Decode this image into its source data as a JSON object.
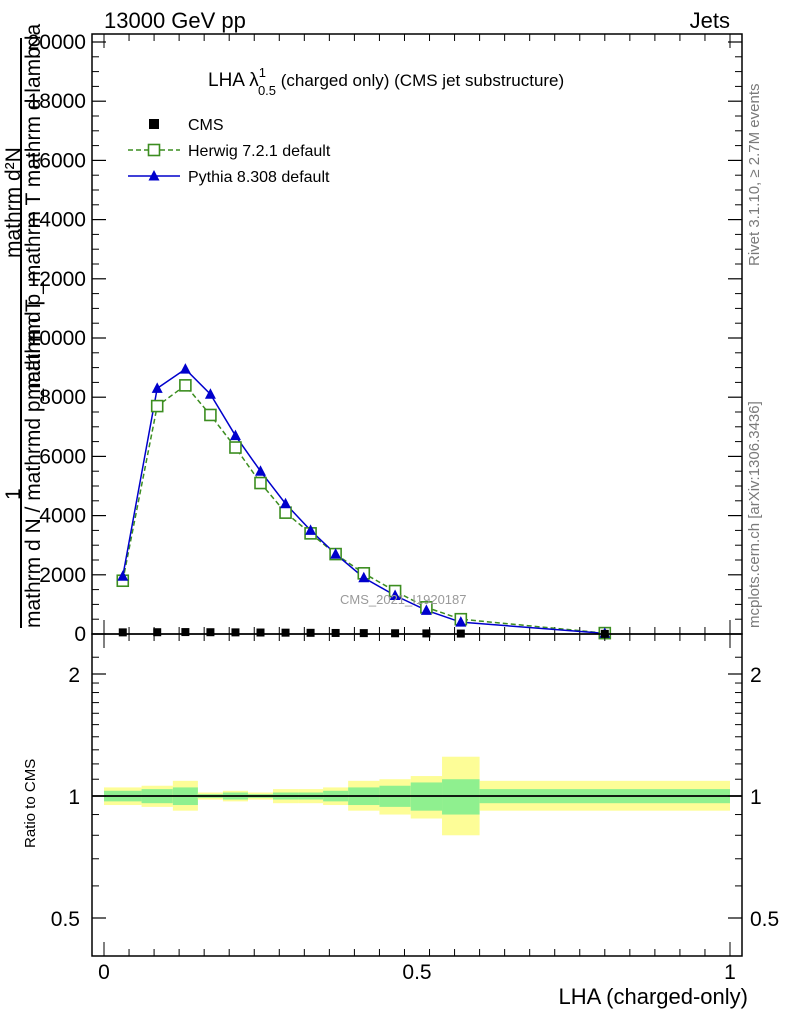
{
  "header": {
    "left": "13000 GeV pp",
    "right": "Jets"
  },
  "side_labels": {
    "rivet": "Rivet 3.1.10, ≥ 2.7M events",
    "mcplots": "mcplots.cern.ch [arXiv:1306.3436]"
  },
  "main_plot": {
    "title_main": "LHA λ",
    "title_sup": "1",
    "title_sub": "0.5",
    "title_rest": " (charged only) (CMS jet substructure)",
    "watermark": "CMS_2021_I1920187",
    "ylabel_numerator_1": "mathrm d²N",
    "ylabel_denominator_1": "mathrm d p_mathrm T mathrm d lambda",
    "ylabel_one": "1",
    "ylabel_denominator_2": "mathrm d N / mathrmd p_mathrm T",
    "ylabel_sub_T": "T"
  },
  "ratio_plot": {
    "ylabel": "Ratio to CMS"
  },
  "xlabel": "LHA (charged-only)",
  "colors": {
    "data": "#000000",
    "herwig": "#3c8d20",
    "pythia": "#0000cc",
    "band_inner": "#8ff08f",
    "band_outer": "#fdfd97"
  },
  "chart_data": [
    {
      "type": "line",
      "title": "LHA λ^1_0.5 (charged only) (CMS jet substructure)",
      "xlabel": "LHA (charged-only)",
      "ylabel": "1/(mathrm d N / mathrmd p_mathrm T) mathrm d²N/(mathrm d p_mathrm T mathrm d lambda)",
      "xlim": [
        0,
        1
      ],
      "ylim": [
        0,
        20000
      ],
      "yticks": [
        0,
        2000,
        4000,
        6000,
        8000,
        10000,
        12000,
        14000,
        16000,
        18000,
        20000
      ],
      "ytick_labels": [
        "0",
        "2000",
        "4000",
        "6000",
        "8000",
        "10000",
        "12000",
        "14000",
        "16000",
        "18000",
        "20000"
      ],
      "legend_position": "top-left",
      "series": [
        {
          "name": "CMS",
          "marker": "square",
          "x": [
            0.03,
            0.085,
            0.13,
            0.17,
            0.21,
            0.25,
            0.29,
            0.33,
            0.37,
            0.415,
            0.465,
            0.515,
            0.57,
            0.8
          ],
          "values": [
            55,
            60,
            65,
            60,
            55,
            50,
            45,
            40,
            35,
            30,
            25,
            20,
            15,
            5
          ]
        },
        {
          "name": "Herwig 7.2.1 default",
          "marker": "open-square",
          "x": [
            0.03,
            0.085,
            0.13,
            0.17,
            0.21,
            0.25,
            0.29,
            0.33,
            0.37,
            0.415,
            0.465,
            0.515,
            0.57,
            0.8
          ],
          "values": [
            1800,
            7700,
            8400,
            7400,
            6300,
            5100,
            4100,
            3400,
            2700,
            2050,
            1450,
            900,
            500,
            30
          ]
        },
        {
          "name": "Pythia 8.308 default",
          "marker": "triangle",
          "x": [
            0.03,
            0.085,
            0.13,
            0.17,
            0.21,
            0.25,
            0.29,
            0.33,
            0.37,
            0.415,
            0.465,
            0.515,
            0.57,
            0.8
          ],
          "values": [
            1950,
            8300,
            8950,
            8100,
            6700,
            5500,
            4400,
            3500,
            2700,
            1900,
            1300,
            800,
            400,
            20
          ]
        }
      ]
    },
    {
      "type": "area",
      "ylabel": "Ratio to CMS",
      "xlim": [
        0,
        1
      ],
      "ylim": [
        0.35,
        2.3
      ],
      "yticks": [
        0.5,
        1,
        2
      ],
      "ytick_labels": [
        "0.5",
        "1",
        "2"
      ],
      "xticks": [
        0,
        0.5,
        1
      ],
      "xtick_labels": [
        "0",
        "0.5",
        "1"
      ],
      "reference_line": 1,
      "bins": [
        {
          "lo": 0.0,
          "hi": 0.06,
          "inner": [
            0.97,
            1.03
          ],
          "outer": [
            0.95,
            1.05
          ]
        },
        {
          "lo": 0.06,
          "hi": 0.11,
          "inner": [
            0.96,
            1.04
          ],
          "outer": [
            0.94,
            1.06
          ]
        },
        {
          "lo": 0.11,
          "hi": 0.15,
          "inner": [
            0.95,
            1.05
          ],
          "outer": [
            0.92,
            1.09
          ]
        },
        {
          "lo": 0.15,
          "hi": 0.19,
          "inner": [
            0.99,
            1.01
          ],
          "outer": [
            0.98,
            1.02
          ]
        },
        {
          "lo": 0.19,
          "hi": 0.23,
          "inner": [
            0.98,
            1.02
          ],
          "outer": [
            0.97,
            1.03
          ]
        },
        {
          "lo": 0.23,
          "hi": 0.27,
          "inner": [
            0.99,
            1.01
          ],
          "outer": [
            0.98,
            1.02
          ]
        },
        {
          "lo": 0.27,
          "hi": 0.31,
          "inner": [
            0.98,
            1.02
          ],
          "outer": [
            0.96,
            1.04
          ]
        },
        {
          "lo": 0.31,
          "hi": 0.35,
          "inner": [
            0.98,
            1.02
          ],
          "outer": [
            0.96,
            1.04
          ]
        },
        {
          "lo": 0.35,
          "hi": 0.39,
          "inner": [
            0.97,
            1.03
          ],
          "outer": [
            0.95,
            1.05
          ]
        },
        {
          "lo": 0.39,
          "hi": 0.44,
          "inner": [
            0.95,
            1.05
          ],
          "outer": [
            0.92,
            1.09
          ]
        },
        {
          "lo": 0.44,
          "hi": 0.49,
          "inner": [
            0.94,
            1.06
          ],
          "outer": [
            0.9,
            1.1
          ]
        },
        {
          "lo": 0.49,
          "hi": 0.54,
          "inner": [
            0.92,
            1.08
          ],
          "outer": [
            0.88,
            1.12
          ]
        },
        {
          "lo": 0.54,
          "hi": 0.6,
          "inner": [
            0.9,
            1.1
          ],
          "outer": [
            0.8,
            1.25
          ]
        },
        {
          "lo": 0.6,
          "hi": 1.0,
          "inner": [
            0.96,
            1.04
          ],
          "outer": [
            0.92,
            1.09
          ]
        }
      ]
    }
  ]
}
